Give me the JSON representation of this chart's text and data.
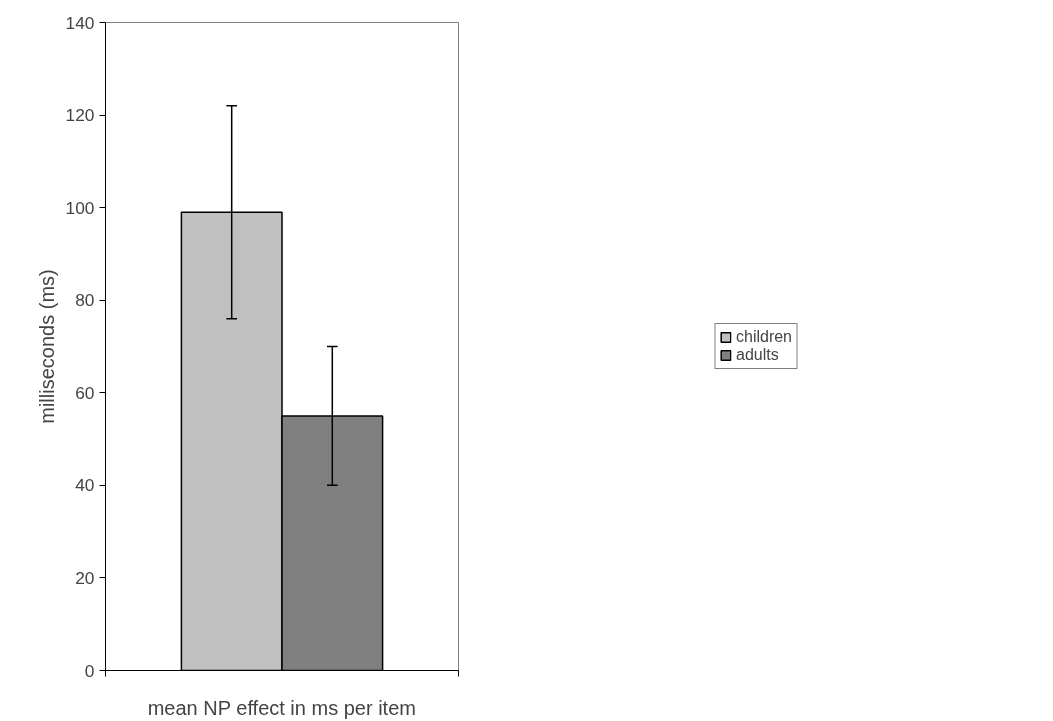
{
  "chart_data": {
    "type": "bar",
    "xlabel": "mean NP effect in ms per item",
    "ylabel": "milliseconds (ms)",
    "categories": [
      null
    ],
    "series": [
      {
        "name": "children",
        "color": "#c0c0c0",
        "values": [
          99
        ],
        "errors": [
          [
            76,
            122
          ]
        ]
      },
      {
        "name": "adults",
        "color": "#808080",
        "values": [
          55
        ],
        "errors": [
          [
            40,
            70
          ]
        ]
      }
    ],
    "ylim": [
      0,
      140
    ],
    "yticks": [
      0,
      20,
      40,
      60,
      80,
      100,
      120,
      140
    ],
    "grid": false,
    "legend": "right",
    "tick_labels": "y"
  }
}
